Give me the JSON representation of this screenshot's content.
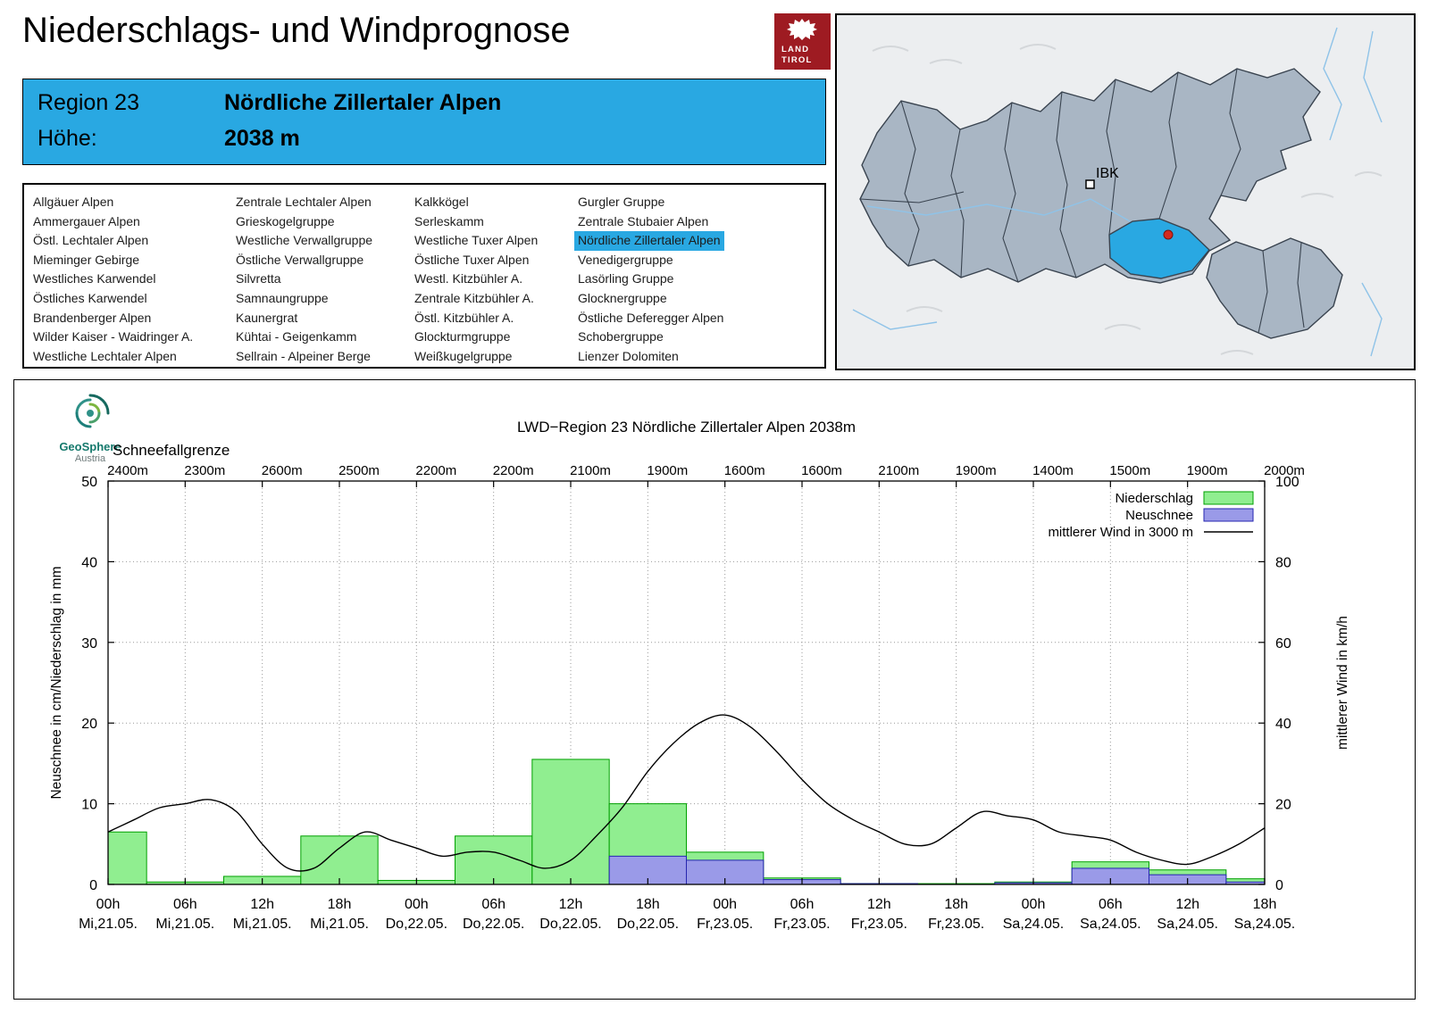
{
  "header": {
    "title": "Niederschlags- und Windprognose",
    "logo": {
      "line1": "LAND",
      "line2": "TIROL"
    }
  },
  "region_info": {
    "region_label": "Region 23",
    "region_name": "Nördliche Zillertaler Alpen",
    "hoehe_label": "Höhe:",
    "hoehe_value": "2038 m"
  },
  "region_list": {
    "selected": "Nördliche Zillertaler Alpen",
    "columns": [
      [
        "Allgäuer Alpen",
        "Ammergauer Alpen",
        "Östl. Lechtaler Alpen",
        "Mieminger Gebirge",
        "Westliches Karwendel",
        "Östliches Karwendel",
        "Brandenberger Alpen",
        "Wilder Kaiser - Waidringer A.",
        "Westliche Lechtaler Alpen"
      ],
      [
        "Zentrale Lechtaler Alpen",
        "Grieskogelgruppe",
        "Westliche Verwallgruppe",
        "Östliche Verwallgruppe",
        "Silvretta",
        "Samnaungruppe",
        "Kaunergrat",
        "Kühtai - Geigenkamm",
        "Sellrain - Alpeiner Berge"
      ],
      [
        "Kalkkögel",
        "Serleskamm",
        "Westliche Tuxer Alpen",
        "Östliche Tuxer Alpen",
        "Westl. Kitzbühler A.",
        "Zentrale Kitzbühler A.",
        "Östl. Kitzbühler A.",
        "Glockturmgruppe",
        "Weißkugelgruppe"
      ],
      [
        "Gurgler Gruppe",
        "Zentrale Stubaier Alpen",
        "Nördliche Zillertaler Alpen",
        "Venedigergruppe",
        "Lasörling Gruppe",
        "Glocknergruppe",
        "Östliche Deferegger Alpen",
        "Schobergruppe",
        "Lienzer Dolomiten"
      ]
    ]
  },
  "map": {
    "city_label": "IBK"
  },
  "geosphere": {
    "name": "GeoSphere",
    "country": "Austria"
  },
  "brand_colors": {
    "accent_blue": "#29a8e2",
    "logo_red": "#9e1b22",
    "map_highlight": "#29a8e2",
    "map_dot_red": "#d42a1e"
  },
  "chart_data": {
    "type": "combo",
    "title": "LWD−Region 23 Nördliche Zillertaler Alpen 2038m",
    "snowline_label": "Schneefallgrenze",
    "snowline_values": [
      "2400m",
      "2300m",
      "2600m",
      "2500m",
      "2200m",
      "2200m",
      "2100m",
      "1900m",
      "1600m",
      "1600m",
      "2100m",
      "1900m",
      "1400m",
      "1500m",
      "1900m",
      "2000m"
    ],
    "ylabel_left": "Neuschnee in cm/Niederschlag in mm",
    "ylabel_right": "mittlerer Wind in km/h",
    "ylim_left": [
      0,
      50
    ],
    "ylim_right": [
      0,
      100
    ],
    "x_hours_span": 90,
    "x_ticks": [
      {
        "time": "00h",
        "date": "Mi,21.05."
      },
      {
        "time": "06h",
        "date": "Mi,21.05."
      },
      {
        "time": "12h",
        "date": "Mi,21.05."
      },
      {
        "time": "18h",
        "date": "Mi,21.05."
      },
      {
        "time": "00h",
        "date": "Do,22.05."
      },
      {
        "time": "06h",
        "date": "Do,22.05."
      },
      {
        "time": "12h",
        "date": "Do,22.05."
      },
      {
        "time": "18h",
        "date": "Do,22.05."
      },
      {
        "time": "00h",
        "date": "Fr,23.05."
      },
      {
        "time": "06h",
        "date": "Fr,23.05."
      },
      {
        "time": "12h",
        "date": "Fr,23.05."
      },
      {
        "time": "18h",
        "date": "Fr,23.05."
      },
      {
        "time": "00h",
        "date": "Sa,24.05."
      },
      {
        "time": "06h",
        "date": "Sa,24.05."
      },
      {
        "time": "12h",
        "date": "Sa,24.05."
      },
      {
        "time": "18h",
        "date": "Sa,24.05."
      }
    ],
    "series": {
      "niederschlag_mm": [
        6.5,
        0.3,
        1.0,
        6.0,
        0.5,
        6.0,
        15.5,
        10.0,
        4.0,
        0.8,
        0.1,
        0.1,
        0.3,
        2.8,
        1.8,
        0.7
      ],
      "neuschnee_cm": [
        0,
        0,
        0,
        0,
        0,
        0,
        0,
        3.5,
        3.0,
        0.6,
        0.1,
        0,
        0.2,
        2.0,
        1.2,
        0.3
      ],
      "wind": {
        "t_hours": [
          0,
          2,
          4,
          6,
          8,
          10,
          12,
          14,
          16,
          18,
          20,
          22,
          24,
          26,
          28,
          30,
          32,
          34,
          36,
          38,
          40,
          42,
          44,
          46,
          48,
          50,
          52,
          54,
          56,
          58,
          60,
          62,
          64,
          66,
          68,
          70,
          72,
          74,
          76,
          78,
          80,
          82,
          84,
          86,
          88,
          90
        ],
        "kmh": [
          13,
          16,
          19,
          20,
          21,
          18,
          10,
          4,
          4,
          9,
          13,
          11,
          9,
          7,
          8,
          8,
          6,
          4,
          6,
          12,
          19,
          28,
          35,
          40,
          42,
          39,
          33,
          26,
          20,
          16,
          13,
          10,
          10,
          14,
          18,
          17,
          16,
          13,
          12,
          11,
          8,
          6,
          5,
          7,
          10,
          14
        ]
      }
    },
    "legend": [
      {
        "label": "Niederschlag",
        "swatch": "niederschlag"
      },
      {
        "label": "Neuschnee",
        "swatch": "neuschnee"
      },
      {
        "label": "mittlerer Wind in 3000 m",
        "swatch": "line"
      }
    ],
    "colors": {
      "niederschlag": "#90ee90",
      "niederschlag_border": "#00a000",
      "neuschnee": "#9a9ae8",
      "neuschnee_border": "#2626b0",
      "wind": "#000000"
    },
    "grid": true,
    "legend_position": "top-right"
  }
}
